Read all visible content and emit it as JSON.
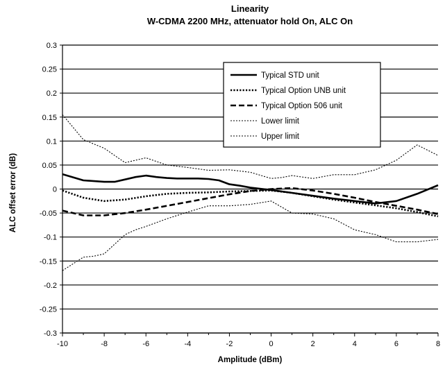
{
  "chart_data": {
    "type": "line",
    "title": "Linearity",
    "subtitle": "W-CDMA 2200 MHz, attenuator hold On, ALC On",
    "xlabel": "Amplitude (dBm)",
    "ylabel": "ALC offset error (dB)",
    "xlim": [
      -10,
      8
    ],
    "ylim": [
      -0.3,
      0.3
    ],
    "x_ticks": [
      "-10",
      "-8",
      "-6",
      "-4",
      "-2",
      "0",
      "2",
      "4",
      "6",
      "8"
    ],
    "y_ticks": [
      "0.3",
      "0.25",
      "0.2",
      "0.15",
      "0.1",
      "0.05",
      "0",
      "-0.05",
      "-0.1",
      "-0.15",
      "-0.2",
      "-0.25",
      "-0.3"
    ],
    "grid": "horizontal",
    "legend_position": "top-right",
    "series": [
      {
        "name": "Typical STD unit",
        "style": "solid",
        "x": [
          -10,
          -9,
          -8,
          -7.5,
          -7,
          -6.5,
          -6,
          -5.5,
          -5,
          -4.5,
          -4,
          -3.5,
          -3,
          -2.5,
          -2,
          -1.5,
          -1,
          0,
          1,
          2,
          3,
          4,
          5,
          6,
          7,
          8
        ],
        "y": [
          0.031,
          0.018,
          0.015,
          0.015,
          0.02,
          0.025,
          0.028,
          0.025,
          0.023,
          0.022,
          0.022,
          0.022,
          0.021,
          0.018,
          0.01,
          0.007,
          0.003,
          -0.002,
          -0.008,
          -0.014,
          -0.02,
          -0.025,
          -0.03,
          -0.025,
          -0.01,
          0.008
        ]
      },
      {
        "name": "Typical Option UNB unit",
        "style": "dotted",
        "x": [
          -10,
          -9,
          -8,
          -7,
          -6,
          -5,
          -4,
          -3,
          -2,
          -1,
          0,
          1,
          2,
          3,
          4,
          5,
          6,
          7,
          8
        ],
        "y": [
          -0.003,
          -0.018,
          -0.025,
          -0.022,
          -0.015,
          -0.01,
          -0.008,
          -0.007,
          -0.005,
          -0.004,
          -0.003,
          -0.008,
          -0.015,
          -0.022,
          -0.028,
          -0.034,
          -0.04,
          -0.048,
          -0.057
        ]
      },
      {
        "name": "Typical Option 506 unit",
        "style": "dashed",
        "x": [
          -10,
          -9,
          -8,
          -7,
          -6,
          -5,
          -4,
          -3,
          -2,
          -1,
          0,
          1,
          2,
          3,
          4,
          5,
          6,
          7,
          8
        ],
        "y": [
          -0.045,
          -0.055,
          -0.055,
          -0.05,
          -0.043,
          -0.035,
          -0.027,
          -0.019,
          -0.011,
          -0.004,
          0.0,
          0.002,
          -0.003,
          -0.01,
          -0.018,
          -0.027,
          -0.035,
          -0.043,
          -0.052
        ]
      },
      {
        "name": "Lower limit",
        "style": "fine-dotted",
        "x": [
          -10,
          -9,
          -8.5,
          -8,
          -7.5,
          -7,
          -6.5,
          -6,
          -5,
          -4,
          -3,
          -2,
          -1,
          0,
          1,
          2,
          3,
          4,
          5,
          6,
          7,
          8
        ],
        "y": [
          -0.17,
          -0.142,
          -0.14,
          -0.135,
          -0.115,
          -0.095,
          -0.085,
          -0.078,
          -0.062,
          -0.048,
          -0.035,
          -0.035,
          -0.032,
          -0.025,
          -0.05,
          -0.052,
          -0.062,
          -0.085,
          -0.095,
          -0.11,
          -0.11,
          -0.105
        ]
      },
      {
        "name": "Upper limit",
        "style": "fine-dotted",
        "x": [
          -10,
          -9,
          -8,
          -7,
          -6,
          -5,
          -4,
          -3,
          -2,
          -1,
          0,
          0.5,
          1,
          2,
          3,
          4,
          5,
          6,
          7,
          8
        ],
        "y": [
          0.155,
          0.103,
          0.085,
          0.055,
          0.065,
          0.05,
          0.045,
          0.039,
          0.04,
          0.035,
          0.022,
          0.024,
          0.028,
          0.022,
          0.03,
          0.03,
          0.04,
          0.06,
          0.092,
          0.07
        ]
      }
    ]
  },
  "colors": {
    "background": "#ffffff",
    "line": "#000000"
  }
}
